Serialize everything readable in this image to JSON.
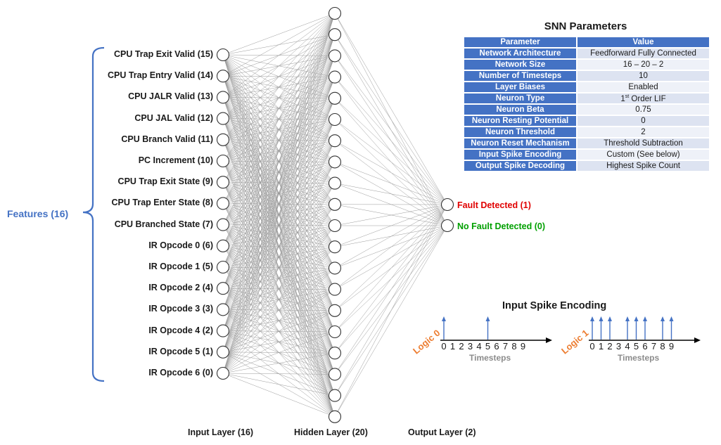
{
  "features": {
    "label": "Features (16)",
    "items": [
      "CPU Trap Exit Valid (15)",
      "CPU Trap Entry Valid (14)",
      "CPU JALR Valid (13)",
      "CPU JAL Valid (12)",
      "CPU Branch Valid (11)",
      "PC Increment (10)",
      "CPU Trap Exit State (9)",
      "CPU Trap Enter State (8)",
      "CPU Branched State (7)",
      "IR Opcode 0 (6)",
      "IR Opcode 1 (5)",
      "IR Opcode 2 (4)",
      "IR Opcode 3 (3)",
      "IR Opcode 4 (2)",
      "IR Opcode 5 (1)",
      "IR Opcode 6 (0)"
    ]
  },
  "network": {
    "input_count": 16,
    "hidden_count": 20,
    "output_count": 2
  },
  "outputs": {
    "fault": {
      "label": "Fault Detected (1)",
      "color": "#e00000"
    },
    "no_fault": {
      "label": "No Fault Detected (0)",
      "color": "#00a000"
    }
  },
  "layers": {
    "input": "Input Layer (16)",
    "hidden": "Hidden Layer (20)",
    "output": "Output Layer (2)"
  },
  "params": {
    "title": "SNN Parameters",
    "header": [
      "Parameter",
      "Value"
    ],
    "rows": [
      [
        "Network Architecture",
        "Feedforward Fully Connected"
      ],
      [
        "Network Size",
        "16 – 20 – 2"
      ],
      [
        "Number of Timesteps",
        "10"
      ],
      [
        "Layer Biases",
        "Enabled"
      ],
      [
        "Neuron Type",
        "1st Order LIF"
      ],
      [
        "Neuron Beta",
        "0.75"
      ],
      [
        "Neuron Resting Potential",
        "0"
      ],
      [
        "Neuron Threshold",
        "2"
      ],
      [
        "Neuron Reset Mechanism",
        "Threshold Subtraction"
      ],
      [
        "Input Spike Encoding",
        "Custom (See below)"
      ],
      [
        "Output Spike Decoding",
        "Highest Spike Count"
      ]
    ]
  },
  "encoding": {
    "title": "Input Spike Encoding",
    "timesteps_label": "Timesteps",
    "ticks": [
      "0",
      "1",
      "2",
      "3",
      "4",
      "5",
      "6",
      "7",
      "8",
      "9"
    ],
    "logic0": {
      "label": "Logic 0",
      "spikes": [
        0,
        5
      ]
    },
    "logic1": {
      "label": "Logic 1",
      "spikes": [
        0,
        1,
        2,
        4,
        5,
        6,
        8,
        9
      ]
    }
  },
  "colors": {
    "accent": "#4472c4",
    "orange": "#ed7d31",
    "connection": "#9a9a9a"
  }
}
